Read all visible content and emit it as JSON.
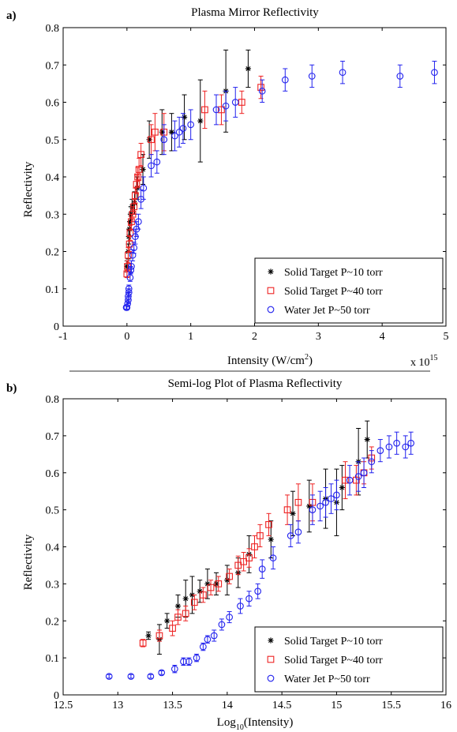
{
  "chart_data": [
    {
      "panel_label": "a)",
      "type": "scatter",
      "title": "Plasma Mirror Reflectivity",
      "xlabel": "Intensity (W/cm",
      "xlabel_sup": "2",
      "xlabel_end": ")",
      "x_exponent_base": "x 10",
      "x_exponent_power": "15",
      "ylabel": "Reflectivity",
      "xlim": [
        -1,
        5
      ],
      "ylim": [
        0,
        0.8
      ],
      "xticks": [
        -1,
        0,
        1,
        2,
        3,
        4,
        5
      ],
      "yticks": [
        0,
        0.1,
        0.2,
        0.3,
        0.4,
        0.5,
        0.6,
        0.7,
        0.8
      ],
      "grid": false,
      "legend_position": "bottom-right",
      "series": [
        {
          "name": "Solid Target P~10 torr",
          "marker": "star",
          "color": "#000000",
          "points": [
            {
              "x": 0.0,
              "y": 0.16,
              "err": 0.015
            },
            {
              "x": 0.02,
              "y": 0.2,
              "err": 0.02
            },
            {
              "x": 0.03,
              "y": 0.24,
              "err": 0.02
            },
            {
              "x": 0.04,
              "y": 0.26,
              "err": 0.02
            },
            {
              "x": 0.05,
              "y": 0.28,
              "err": 0.02
            },
            {
              "x": 0.06,
              "y": 0.3,
              "err": 0.02
            },
            {
              "x": 0.08,
              "y": 0.32,
              "err": 0.02
            },
            {
              "x": 0.12,
              "y": 0.33,
              "err": 0.03
            },
            {
              "x": 0.16,
              "y": 0.37,
              "err": 0.03
            },
            {
              "x": 0.25,
              "y": 0.42,
              "err": 0.04
            },
            {
              "x": 0.35,
              "y": 0.5,
              "err": 0.05
            },
            {
              "x": 0.55,
              "y": 0.52,
              "err": 0.06
            },
            {
              "x": 0.7,
              "y": 0.52,
              "err": 0.05
            },
            {
              "x": 0.9,
              "y": 0.56,
              "err": 0.06
            },
            {
              "x": 1.15,
              "y": 0.55,
              "err": 0.11
            },
            {
              "x": 1.55,
              "y": 0.63,
              "err": 0.11
            },
            {
              "x": 1.9,
              "y": 0.69,
              "err": 0.05
            }
          ]
        },
        {
          "name": "Solid Target P~40 torr",
          "marker": "square",
          "color": "#ee2222",
          "points": [
            {
              "x": 0.0,
              "y": 0.14,
              "err": 0.01
            },
            {
              "x": 0.01,
              "y": 0.16,
              "err": 0.015
            },
            {
              "x": 0.02,
              "y": 0.19,
              "err": 0.02
            },
            {
              "x": 0.04,
              "y": 0.22,
              "err": 0.02
            },
            {
              "x": 0.05,
              "y": 0.25,
              "err": 0.02
            },
            {
              "x": 0.07,
              "y": 0.28,
              "err": 0.02
            },
            {
              "x": 0.09,
              "y": 0.3,
              "err": 0.02
            },
            {
              "x": 0.11,
              "y": 0.32,
              "err": 0.02
            },
            {
              "x": 0.13,
              "y": 0.35,
              "err": 0.02
            },
            {
              "x": 0.15,
              "y": 0.38,
              "err": 0.025
            },
            {
              "x": 0.17,
              "y": 0.4,
              "err": 0.025
            },
            {
              "x": 0.19,
              "y": 0.42,
              "err": 0.03
            },
            {
              "x": 0.22,
              "y": 0.46,
              "err": 0.03
            },
            {
              "x": 0.38,
              "y": 0.5,
              "err": 0.04
            },
            {
              "x": 0.44,
              "y": 0.52,
              "err": 0.05
            },
            {
              "x": 0.58,
              "y": 0.52,
              "err": 0.05
            },
            {
              "x": 1.22,
              "y": 0.58,
              "err": 0.05
            },
            {
              "x": 1.48,
              "y": 0.58,
              "err": 0.04
            },
            {
              "x": 1.8,
              "y": 0.6,
              "err": 0.03
            },
            {
              "x": 2.1,
              "y": 0.64,
              "err": 0.03
            }
          ]
        },
        {
          "name": "Water Jet P~50 torr",
          "marker": "circle",
          "color": "#2222ee",
          "points": [
            {
              "x": -0.01,
              "y": 0.05,
              "err": 0.005
            },
            {
              "x": 0.0,
              "y": 0.05,
              "err": 0.005
            },
            {
              "x": 0.01,
              "y": 0.06,
              "err": 0.005
            },
            {
              "x": 0.02,
              "y": 0.07,
              "err": 0.01
            },
            {
              "x": 0.02,
              "y": 0.08,
              "err": 0.01
            },
            {
              "x": 0.03,
              "y": 0.09,
              "err": 0.01
            },
            {
              "x": 0.03,
              "y": 0.1,
              "err": 0.01
            },
            {
              "x": 0.05,
              "y": 0.13,
              "err": 0.01
            },
            {
              "x": 0.06,
              "y": 0.15,
              "err": 0.01
            },
            {
              "x": 0.07,
              "y": 0.16,
              "err": 0.015
            },
            {
              "x": 0.09,
              "y": 0.19,
              "err": 0.015
            },
            {
              "x": 0.11,
              "y": 0.21,
              "err": 0.015
            },
            {
              "x": 0.13,
              "y": 0.24,
              "err": 0.02
            },
            {
              "x": 0.15,
              "y": 0.26,
              "err": 0.02
            },
            {
              "x": 0.18,
              "y": 0.28,
              "err": 0.02
            },
            {
              "x": 0.22,
              "y": 0.34,
              "err": 0.025
            },
            {
              "x": 0.26,
              "y": 0.37,
              "err": 0.03
            },
            {
              "x": 0.38,
              "y": 0.43,
              "err": 0.03
            },
            {
              "x": 0.47,
              "y": 0.44,
              "err": 0.03
            },
            {
              "x": 0.58,
              "y": 0.5,
              "err": 0.04
            },
            {
              "x": 0.75,
              "y": 0.51,
              "err": 0.04
            },
            {
              "x": 0.82,
              "y": 0.52,
              "err": 0.04
            },
            {
              "x": 0.88,
              "y": 0.53,
              "err": 0.04
            },
            {
              "x": 1.0,
              "y": 0.54,
              "err": 0.04
            },
            {
              "x": 1.4,
              "y": 0.58,
              "err": 0.04
            },
            {
              "x": 1.55,
              "y": 0.59,
              "err": 0.04
            },
            {
              "x": 1.7,
              "y": 0.6,
              "err": 0.04
            },
            {
              "x": 2.12,
              "y": 0.63,
              "err": 0.03
            },
            {
              "x": 2.48,
              "y": 0.66,
              "err": 0.03
            },
            {
              "x": 2.9,
              "y": 0.67,
              "err": 0.03
            },
            {
              "x": 3.38,
              "y": 0.68,
              "err": 0.03
            },
            {
              "x": 4.28,
              "y": 0.67,
              "err": 0.03
            },
            {
              "x": 4.82,
              "y": 0.68,
              "err": 0.03
            }
          ]
        }
      ]
    },
    {
      "panel_label": "b)",
      "type": "scatter",
      "title": "Semi-log Plot of Plasma Reflectivity",
      "xlabel": "Log",
      "xlabel_sub": "10",
      "xlabel_end": "(Intensity)",
      "ylabel": "Reflectivity",
      "xlim": [
        12.5,
        16
      ],
      "ylim": [
        0,
        0.8
      ],
      "xticks": [
        12.5,
        13,
        13.5,
        14,
        14.5,
        15,
        15.5,
        16
      ],
      "yticks": [
        0,
        0.1,
        0.2,
        0.3,
        0.4,
        0.5,
        0.6,
        0.7,
        0.8
      ],
      "grid": false,
      "legend_position": "bottom-right",
      "series": [
        {
          "name": "Solid Target P~10 torr",
          "marker": "star",
          "color": "#000000",
          "points": [
            {
              "x": 13.28,
              "y": 0.16,
              "err": 0.01
            },
            {
              "x": 13.38,
              "y": 0.15,
              "err": 0.04
            },
            {
              "x": 13.45,
              "y": 0.2,
              "err": 0.02
            },
            {
              "x": 13.55,
              "y": 0.24,
              "err": 0.03
            },
            {
              "x": 13.62,
              "y": 0.26,
              "err": 0.05
            },
            {
              "x": 13.68,
              "y": 0.27,
              "err": 0.05
            },
            {
              "x": 13.75,
              "y": 0.28,
              "err": 0.03
            },
            {
              "x": 13.82,
              "y": 0.3,
              "err": 0.04
            },
            {
              "x": 13.9,
              "y": 0.3,
              "err": 0.03
            },
            {
              "x": 14.0,
              "y": 0.31,
              "err": 0.04
            },
            {
              "x": 14.1,
              "y": 0.33,
              "err": 0.04
            },
            {
              "x": 14.2,
              "y": 0.38,
              "err": 0.05
            },
            {
              "x": 14.4,
              "y": 0.42,
              "err": 0.05
            },
            {
              "x": 14.6,
              "y": 0.49,
              "err": 0.06
            },
            {
              "x": 14.75,
              "y": 0.51,
              "err": 0.07
            },
            {
              "x": 14.9,
              "y": 0.53,
              "err": 0.08
            },
            {
              "x": 15.0,
              "y": 0.52,
              "err": 0.09
            },
            {
              "x": 15.05,
              "y": 0.56,
              "err": 0.06
            },
            {
              "x": 15.2,
              "y": 0.63,
              "err": 0.09
            },
            {
              "x": 15.28,
              "y": 0.69,
              "err": 0.05
            }
          ]
        },
        {
          "name": "Solid Target P~40 torr",
          "marker": "square",
          "color": "#ee2222",
          "points": [
            {
              "x": 13.23,
              "y": 0.14,
              "err": 0.01
            },
            {
              "x": 13.38,
              "y": 0.16,
              "err": 0.015
            },
            {
              "x": 13.5,
              "y": 0.18,
              "err": 0.02
            },
            {
              "x": 13.55,
              "y": 0.21,
              "err": 0.02
            },
            {
              "x": 13.62,
              "y": 0.22,
              "err": 0.02
            },
            {
              "x": 13.7,
              "y": 0.25,
              "err": 0.02
            },
            {
              "x": 13.78,
              "y": 0.27,
              "err": 0.02
            },
            {
              "x": 13.85,
              "y": 0.29,
              "err": 0.02
            },
            {
              "x": 13.92,
              "y": 0.3,
              "err": 0.02
            },
            {
              "x": 14.02,
              "y": 0.32,
              "err": 0.02
            },
            {
              "x": 14.1,
              "y": 0.35,
              "err": 0.025
            },
            {
              "x": 14.15,
              "y": 0.36,
              "err": 0.025
            },
            {
              "x": 14.2,
              "y": 0.37,
              "err": 0.025
            },
            {
              "x": 14.25,
              "y": 0.4,
              "err": 0.03
            },
            {
              "x": 14.3,
              "y": 0.43,
              "err": 0.03
            },
            {
              "x": 14.38,
              "y": 0.46,
              "err": 0.03
            },
            {
              "x": 14.55,
              "y": 0.5,
              "err": 0.04
            },
            {
              "x": 14.65,
              "y": 0.52,
              "err": 0.05
            },
            {
              "x": 14.78,
              "y": 0.52,
              "err": 0.05
            },
            {
              "x": 15.08,
              "y": 0.58,
              "err": 0.05
            },
            {
              "x": 15.18,
              "y": 0.58,
              "err": 0.04
            },
            {
              "x": 15.25,
              "y": 0.6,
              "err": 0.03
            },
            {
              "x": 15.32,
              "y": 0.64,
              "err": 0.03
            }
          ]
        },
        {
          "name": "Water Jet P~50 torr",
          "marker": "circle",
          "color": "#2222ee",
          "points": [
            {
              "x": 12.92,
              "y": 0.05,
              "err": 0.005
            },
            {
              "x": 13.12,
              "y": 0.05,
              "err": 0.005
            },
            {
              "x": 13.3,
              "y": 0.05,
              "err": 0.005
            },
            {
              "x": 13.4,
              "y": 0.06,
              "err": 0.005
            },
            {
              "x": 13.52,
              "y": 0.07,
              "err": 0.01
            },
            {
              "x": 13.6,
              "y": 0.09,
              "err": 0.01
            },
            {
              "x": 13.65,
              "y": 0.09,
              "err": 0.01
            },
            {
              "x": 13.72,
              "y": 0.1,
              "err": 0.01
            },
            {
              "x": 13.78,
              "y": 0.13,
              "err": 0.01
            },
            {
              "x": 13.82,
              "y": 0.15,
              "err": 0.01
            },
            {
              "x": 13.88,
              "y": 0.16,
              "err": 0.015
            },
            {
              "x": 13.95,
              "y": 0.19,
              "err": 0.015
            },
            {
              "x": 14.02,
              "y": 0.21,
              "err": 0.015
            },
            {
              "x": 14.12,
              "y": 0.24,
              "err": 0.02
            },
            {
              "x": 14.2,
              "y": 0.26,
              "err": 0.02
            },
            {
              "x": 14.28,
              "y": 0.28,
              "err": 0.02
            },
            {
              "x": 14.32,
              "y": 0.34,
              "err": 0.025
            },
            {
              "x": 14.42,
              "y": 0.37,
              "err": 0.03
            },
            {
              "x": 14.58,
              "y": 0.43,
              "err": 0.03
            },
            {
              "x": 14.65,
              "y": 0.44,
              "err": 0.03
            },
            {
              "x": 14.78,
              "y": 0.5,
              "err": 0.04
            },
            {
              "x": 14.85,
              "y": 0.51,
              "err": 0.04
            },
            {
              "x": 14.9,
              "y": 0.52,
              "err": 0.04
            },
            {
              "x": 14.95,
              "y": 0.53,
              "err": 0.04
            },
            {
              "x": 15.0,
              "y": 0.54,
              "err": 0.04
            },
            {
              "x": 15.12,
              "y": 0.58,
              "err": 0.04
            },
            {
              "x": 15.2,
              "y": 0.59,
              "err": 0.04
            },
            {
              "x": 15.25,
              "y": 0.6,
              "err": 0.04
            },
            {
              "x": 15.32,
              "y": 0.63,
              "err": 0.03
            },
            {
              "x": 15.4,
              "y": 0.66,
              "err": 0.03
            },
            {
              "x": 15.48,
              "y": 0.67,
              "err": 0.03
            },
            {
              "x": 15.55,
              "y": 0.68,
              "err": 0.03
            },
            {
              "x": 15.63,
              "y": 0.67,
              "err": 0.03
            },
            {
              "x": 15.68,
              "y": 0.68,
              "err": 0.03
            }
          ]
        }
      ]
    }
  ]
}
